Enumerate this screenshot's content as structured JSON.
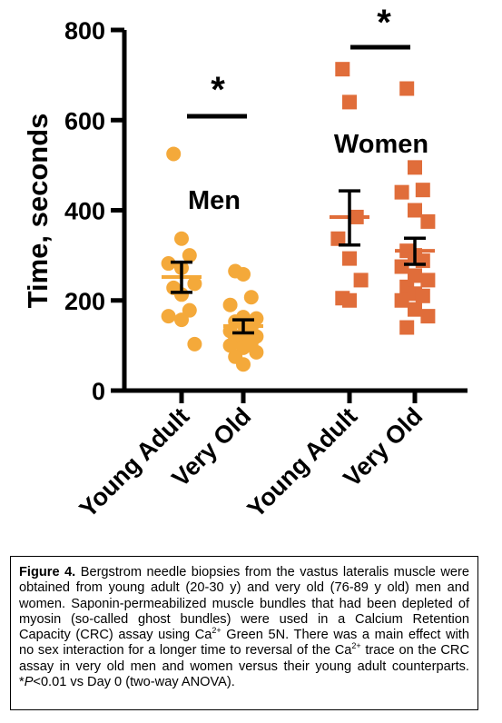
{
  "chart_data": {
    "type": "scatter",
    "ylabel": "Time, seconds",
    "ylim": [
      0,
      800
    ],
    "yticks": [
      "0",
      "200",
      "400",
      "600",
      "800"
    ],
    "categories": [
      "Young Adult",
      "Very Old",
      "Young Adult",
      "Very Old"
    ],
    "groups": [
      {
        "name": "Men",
        "color": "#f4a93a",
        "marker": "circle",
        "significance": "*"
      },
      {
        "name": "Women",
        "color": "#e06d3a",
        "marker": "square",
        "significance": "*"
      }
    ],
    "series": [
      {
        "group": "Men",
        "category": "Young Adult",
        "mean": 252,
        "sem_low": 218,
        "sem_high": 285,
        "values": [
          525,
          337,
          300,
          282,
          272,
          237,
          228,
          213,
          178,
          165,
          157,
          103
        ]
      },
      {
        "group": "Men",
        "category": "Very Old",
        "mean": 143,
        "sem_low": 128,
        "sem_high": 157,
        "values": [
          265,
          258,
          207,
          190,
          163,
          160,
          153,
          148,
          140,
          132,
          125,
          120,
          115,
          110,
          105,
          100,
          95,
          85,
          75,
          58
        ]
      },
      {
        "group": "Women",
        "category": "Young Adult",
        "mean": 385,
        "sem_low": 323,
        "sem_high": 443,
        "values": [
          713,
          640,
          385,
          337,
          293,
          245,
          205,
          200
        ]
      },
      {
        "group": "Women",
        "category": "Very Old",
        "mean": 310,
        "sem_low": 280,
        "sem_high": 338,
        "values": [
          670,
          495,
          445,
          440,
          400,
          375,
          310,
          300,
          288,
          275,
          255,
          245,
          230,
          215,
          210,
          200,
          180,
          165,
          140
        ]
      }
    ]
  },
  "caption": {
    "label": "Figure 4.",
    "p1": " Bergstrom needle biopsies from the vastus lateralis muscle were obtained from young adult (20-30 y) and very old (76-89 y old) men and women. Saponin-permeabilized muscle bundles that had been depleted of myosin (so-called ghost bundles) were used in a Calcium Retention Capacity (CRC) assay using Ca",
    "sup1": "2+",
    "p2": " Green 5N. There was a main effect with no sex interaction for a longer time to reversal of the Ca",
    "sup2": "2+",
    "p3": " trace on the CRC assay in very old men and women versus their young adult counterparts. *",
    "p_italic": "P",
    "p4": "<0.01 vs Day 0 (two-way ANOVA)."
  }
}
